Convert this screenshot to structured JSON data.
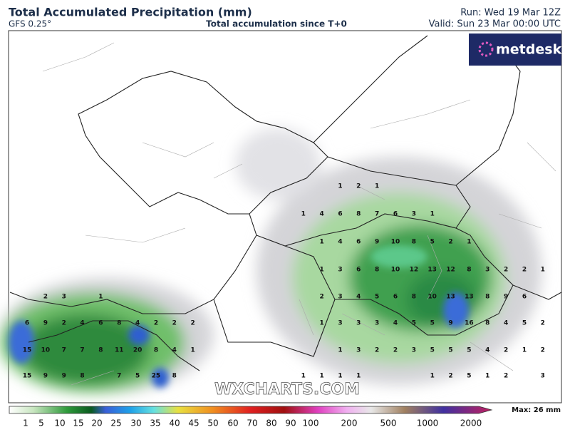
{
  "header": {
    "title": "Total Accumulated Precipitation (mm)",
    "model": "GFS 0.25°",
    "subtitle": "Total accumulation since T+0",
    "run": "Run: Wed 19 Mar 12Z",
    "valid": "Valid: Sun 23 Mar 00:00 UTC"
  },
  "logo": "metdesk",
  "watermark": "WXCHARTS.COM",
  "map_values": [
    [
      null,
      null,
      null,
      null,
      null,
      null,
      null,
      null,
      null,
      null,
      null,
      null,
      null,
      null,
      null,
      null,
      null,
      1,
      2,
      1,
      null,
      null,
      null,
      null,
      null,
      null,
      null,
      null,
      null
    ],
    [
      null,
      null,
      null,
      null,
      null,
      null,
      null,
      null,
      null,
      null,
      null,
      null,
      null,
      null,
      null,
      1,
      4,
      6,
      8,
      7,
      6,
      3,
      1,
      null,
      null,
      null,
      null,
      null,
      null
    ],
    [
      null,
      null,
      null,
      null,
      null,
      null,
      null,
      null,
      null,
      null,
      null,
      null,
      null,
      null,
      null,
      null,
      1,
      4,
      6,
      9,
      10,
      8,
      5,
      2,
      1,
      null,
      null,
      null,
      null
    ],
    [
      null,
      null,
      null,
      null,
      null,
      null,
      null,
      null,
      null,
      null,
      null,
      null,
      null,
      null,
      null,
      null,
      1,
      3,
      6,
      8,
      10,
      12,
      13,
      12,
      8,
      3,
      2,
      2,
      1
    ],
    [
      null,
      2,
      3,
      null,
      1,
      null,
      null,
      null,
      null,
      null,
      null,
      null,
      null,
      null,
      null,
      null,
      2,
      3,
      4,
      5,
      6,
      8,
      10,
      13,
      13,
      8,
      9,
      6,
      null
    ],
    [
      6,
      9,
      2,
      4,
      6,
      8,
      4,
      2,
      2,
      2,
      null,
      null,
      null,
      null,
      null,
      null,
      1,
      3,
      3,
      3,
      4,
      5,
      5,
      9,
      16,
      8,
      4,
      5,
      2
    ],
    [
      15,
      10,
      7,
      7,
      8,
      11,
      20,
      8,
      4,
      1,
      null,
      null,
      null,
      null,
      null,
      null,
      null,
      1,
      3,
      2,
      2,
      3,
      5,
      5,
      5,
      4,
      2,
      1,
      2
    ],
    [
      15,
      9,
      9,
      8,
      null,
      7,
      5,
      25,
      8,
      null,
      null,
      null,
      null,
      null,
      null,
      1,
      1,
      1,
      1,
      null,
      null,
      null,
      1,
      2,
      5,
      1,
      2,
      null,
      3
    ]
  ],
  "colorbar": {
    "ticks": [
      1,
      5,
      10,
      15,
      20,
      25,
      30,
      35,
      40,
      45,
      50,
      60,
      70,
      80,
      90,
      100,
      200,
      500,
      1000,
      2000
    ],
    "max_label": "Max: 26 mm"
  }
}
